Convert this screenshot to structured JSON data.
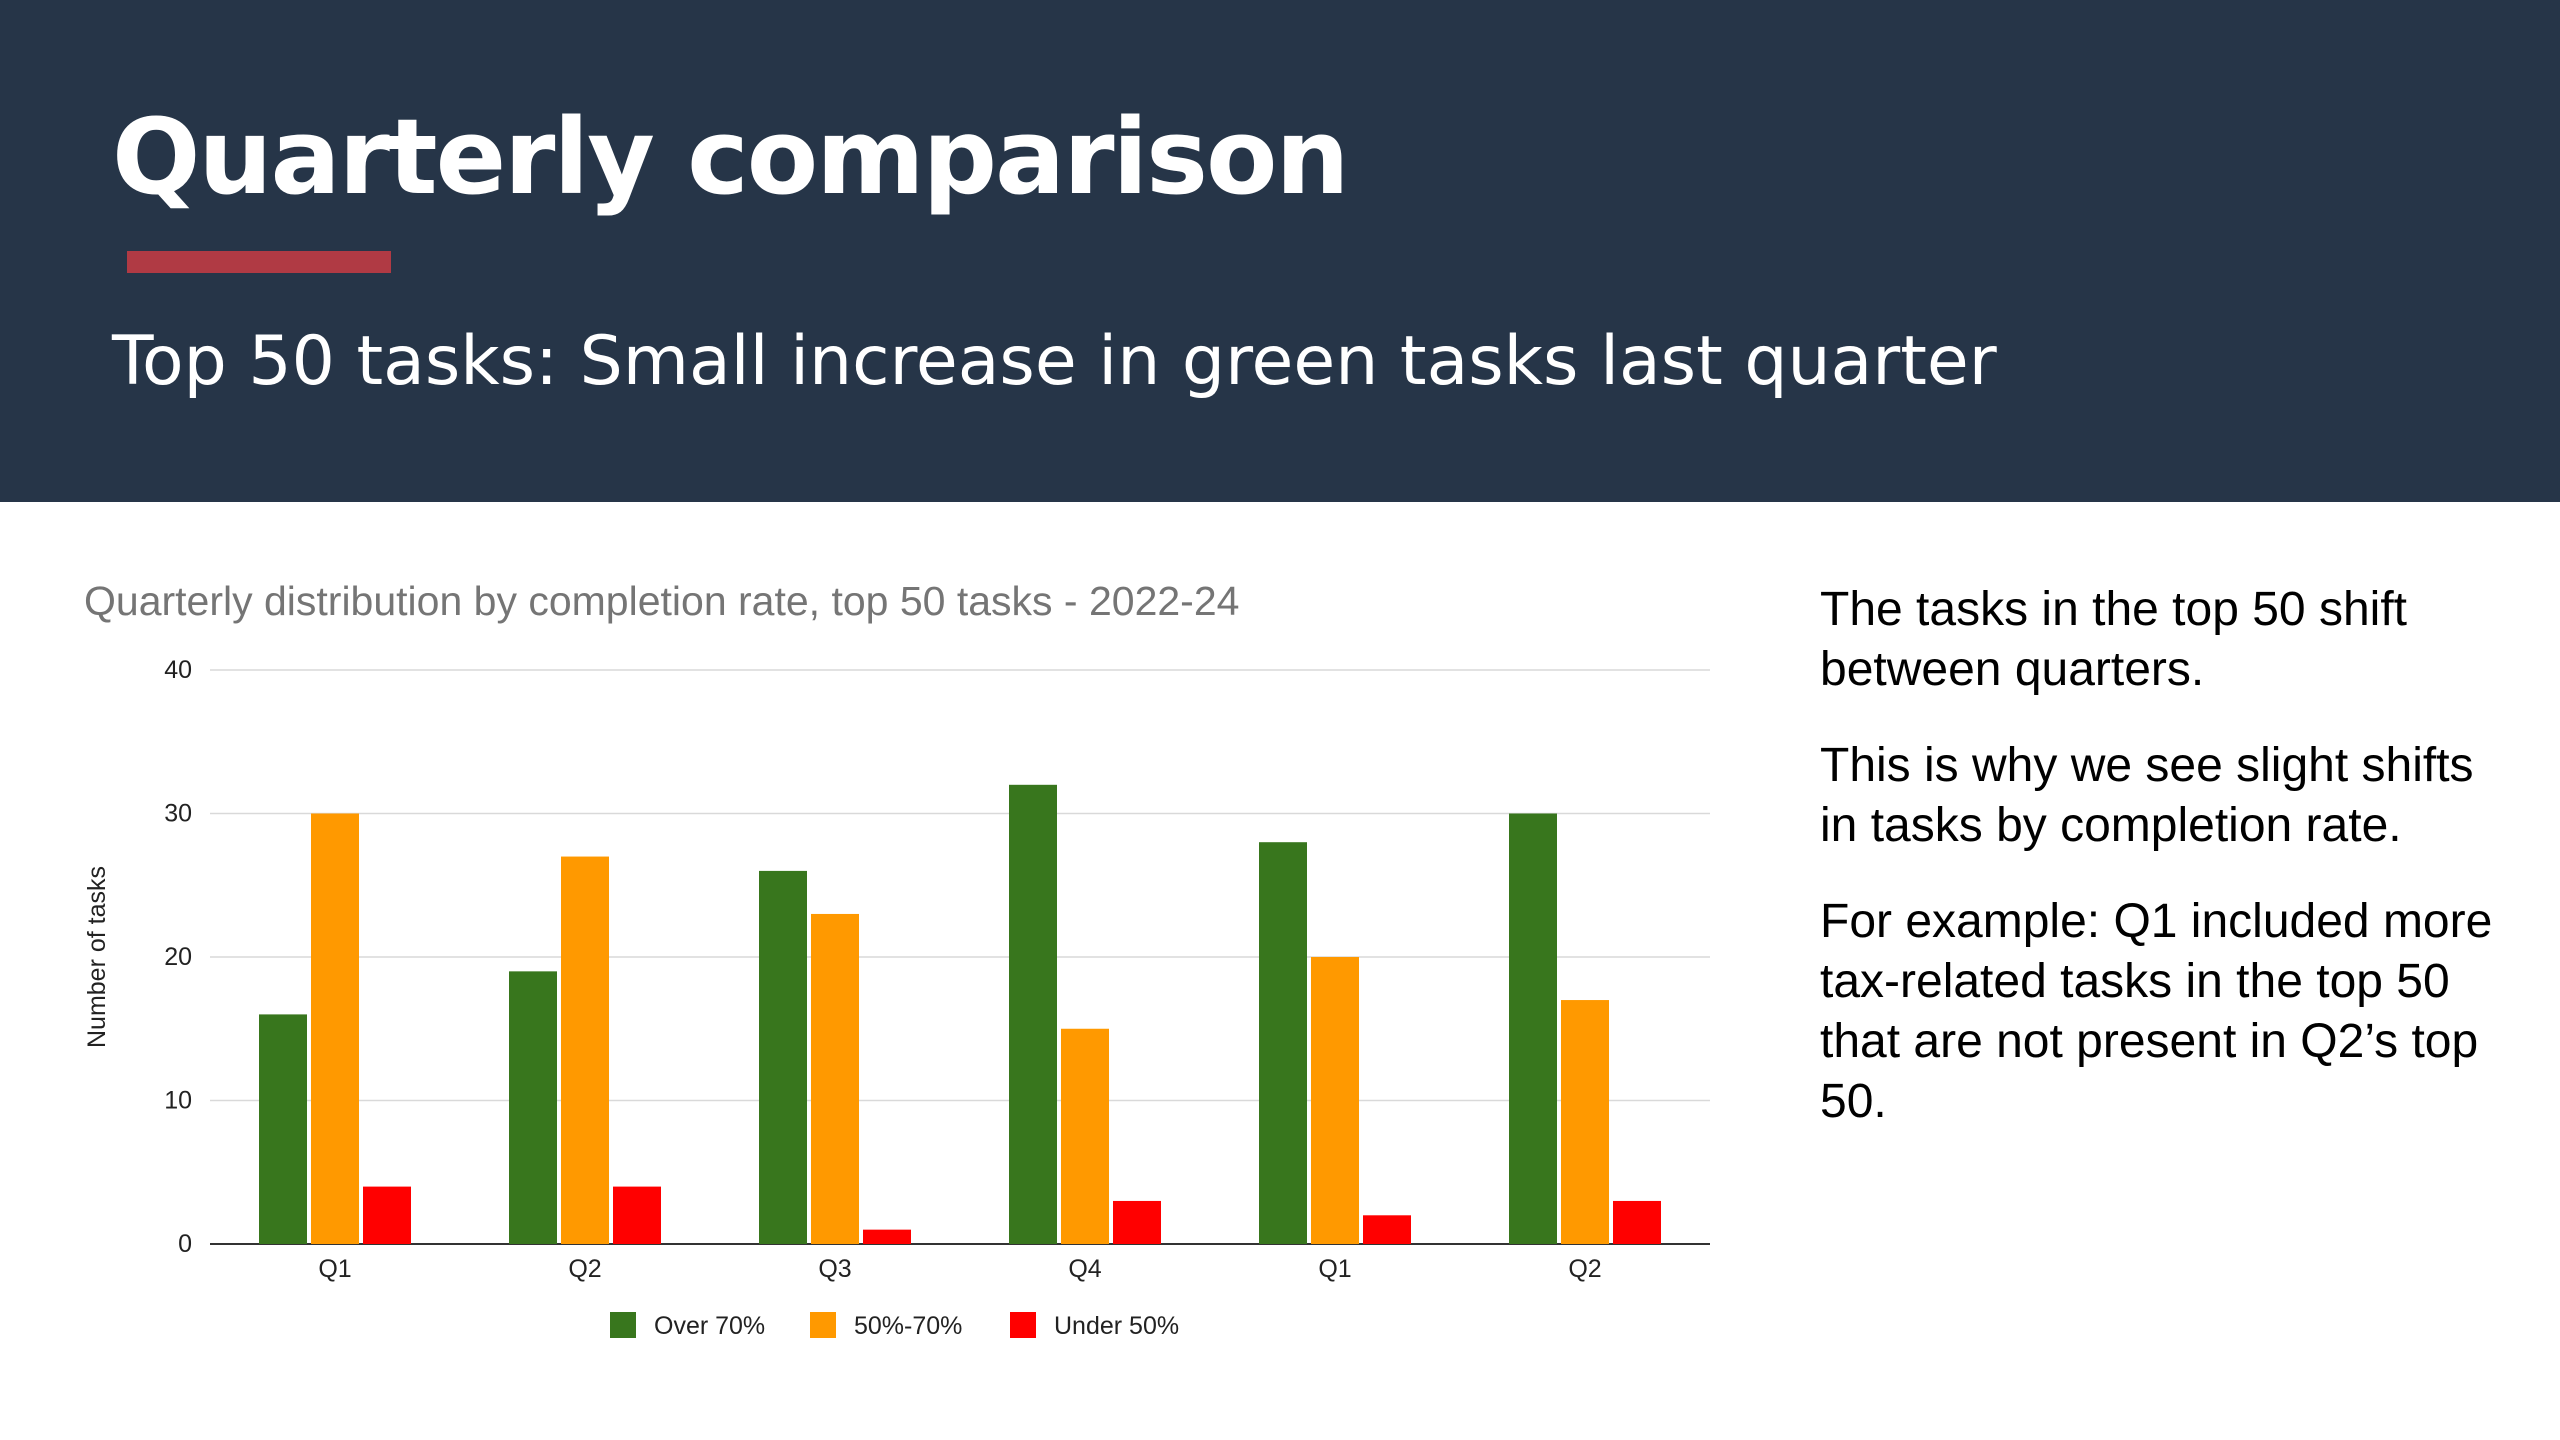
{
  "slide": {
    "title": "Quarterly comparison",
    "subtitle": "Top 50 tasks: Small increase in green tasks last quarter",
    "notes": [
      "The tasks in the top 50 shift between quarters.",
      "This is why we see slight shifts in tasks by completion rate.",
      "For example: Q1 included more tax-related tasks in the top 50 that are not present in Q2’s top 50."
    ]
  },
  "colors": {
    "header_bg": "#263548",
    "accent": "#b03a44",
    "over70": "#38761d",
    "mid": "#ff9900",
    "under50": "#ff0000"
  },
  "chart_data": {
    "type": "bar",
    "title": "Quarterly distribution by completion rate, top 50 tasks - 2022-24",
    "xlabel": "",
    "ylabel": "Number of tasks",
    "categories": [
      "Q1",
      "Q2",
      "Q3",
      "Q4",
      "Q1",
      "Q2"
    ],
    "series": [
      {
        "name": "Over 70%",
        "color": "#38761d",
        "values": [
          16,
          19,
          26,
          32,
          28,
          30
        ]
      },
      {
        "name": "50%-70%",
        "color": "#ff9900",
        "values": [
          30,
          27,
          23,
          15,
          20,
          17
        ]
      },
      {
        "name": "Under 50%",
        "color": "#ff0000",
        "values": [
          4,
          4,
          1,
          3,
          2,
          3
        ]
      }
    ],
    "ylim": [
      0,
      40
    ],
    "yticks": [
      0,
      10,
      20,
      30,
      40
    ],
    "grid": true,
    "legend": "bottom"
  }
}
